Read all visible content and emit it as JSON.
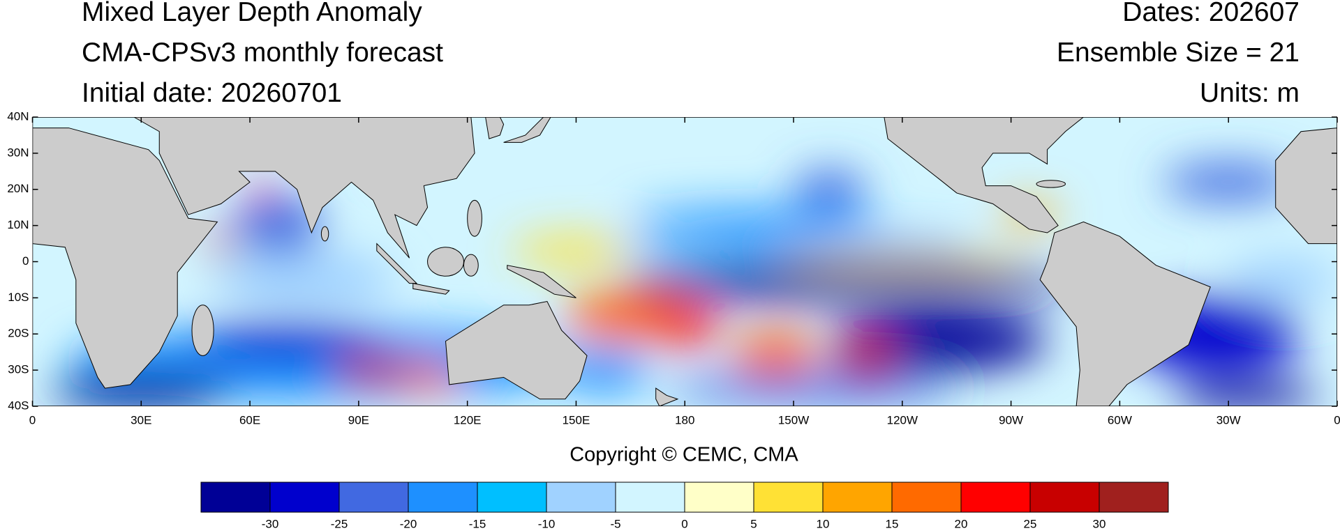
{
  "header": {
    "title": "Mixed Layer Depth Anomaly",
    "model": "CMA-CPSv3 monthly forecast",
    "initial_date": "Initial date: 20260701",
    "dates": "Dates: 202607",
    "ensemble": "Ensemble Size = 21",
    "units": "Units: m"
  },
  "map": {
    "lat_ticks": [
      "40N",
      "30N",
      "20N",
      "10N",
      "0",
      "10S",
      "20S",
      "30S",
      "40S"
    ],
    "lon_ticks": [
      "0",
      "30E",
      "60E",
      "90E",
      "120E",
      "150E",
      "180",
      "150W",
      "120W",
      "90W",
      "60W",
      "30W",
      "0"
    ]
  },
  "copyright": "Copyright © CEMC, CMA",
  "colorbar": {
    "colors": [
      "#000096",
      "#0000cd",
      "#4169e1",
      "#1e90ff",
      "#00bfff",
      "#a0d2ff",
      "#d2f5ff",
      "#ffffc8",
      "#ffe135",
      "#ffa500",
      "#ff6a00",
      "#ff0000",
      "#c80000",
      "#a0201e"
    ],
    "labels": [
      -30,
      -25,
      -20,
      -15,
      -10,
      -5,
      0,
      5,
      10,
      15,
      20,
      25,
      30
    ]
  }
}
